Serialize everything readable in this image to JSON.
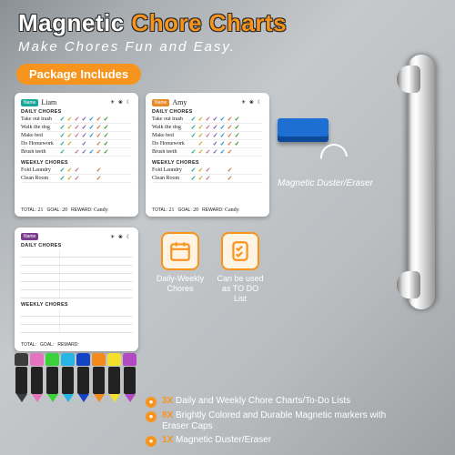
{
  "title": {
    "word1": "Magnetic",
    "word2": "Chore Charts"
  },
  "subtitle": "Make Chores Fun and Easy.",
  "package_tag": "Package Includes",
  "charts": [
    {
      "color": "teal",
      "name": "Liam",
      "daily_label": "DAILY CHORES",
      "weekly_label": "WEEKLY CHORES",
      "daily": [
        "Take out trash",
        "Walk the dog",
        "Make bed",
        "Do Homework",
        "Brush teeth"
      ],
      "weekly": [
        "Fold Laundry",
        "Clean Room"
      ],
      "checks_colors": [
        "#17a086",
        "#c9a514",
        "#cf5490",
        "#6a54b5",
        "#1289c4",
        "#d46b1c",
        "#1a9b1a"
      ],
      "total": "21",
      "goal": "20",
      "reward": "Candy"
    },
    {
      "color": "orange",
      "name": "Amy",
      "daily_label": "DAILY CHORES",
      "weekly_label": "WEEKLY CHORES",
      "daily": [
        "Take out trash",
        "Walk the dog",
        "Make bed",
        "Do Homework",
        "Brush teeth"
      ],
      "weekly": [
        "Fold Laundry",
        "Clean Room"
      ],
      "checks_colors": [
        "#17a086",
        "#c9a514",
        "#cf5490",
        "#6a54b5",
        "#1289c4",
        "#d46b1c",
        "#1a9b1a"
      ],
      "total": "21",
      "goal": "20",
      "reward": "Candy"
    }
  ],
  "blank_chart": {
    "color": "purple",
    "daily_label": "DAILY CHORES",
    "weekly_label": "WEEKLY CHORES",
    "footer_labels": [
      "TOTAL:",
      "GOAL:",
      "REWARD:"
    ]
  },
  "icons": [
    {
      "caption": "Daily-Weekly Chores",
      "glyph": "calendar"
    },
    {
      "caption": "Can be used as TO DO List",
      "glyph": "checklist"
    }
  ],
  "eraser": {
    "label": "Magnetic Duster/Eraser",
    "color": "#1d6fd4"
  },
  "markers": [
    "#3b3b3b",
    "#e573c0",
    "#3bd13b",
    "#29b4e6",
    "#1444c4",
    "#f28a1d",
    "#f4e02c",
    "#b24ac4"
  ],
  "bullets": [
    {
      "qty": "3X",
      "text": "Daily and Weekly Chore Charts/To-Do Lists"
    },
    {
      "qty": "8X",
      "text": "Brightly Colored and Durable Magnetic markers with Eraser Caps"
    },
    {
      "qty": "1X",
      "text": "Magnetic Duster/Eraser"
    }
  ],
  "colors": {
    "accent": "#f7941d"
  }
}
